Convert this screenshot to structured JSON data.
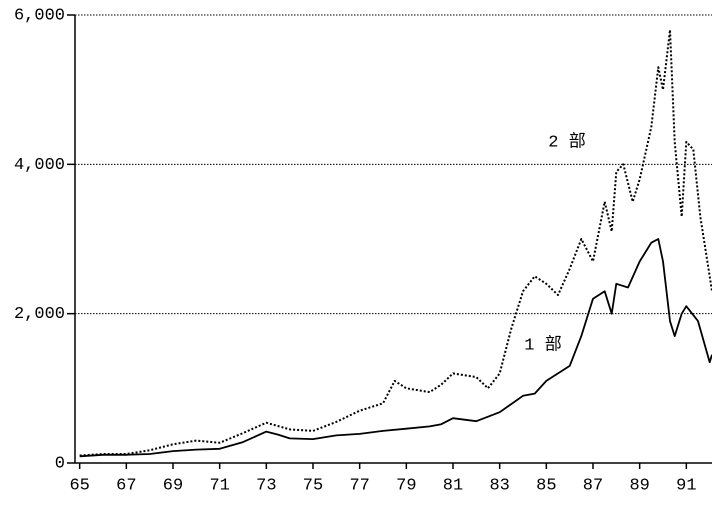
{
  "chart_data": {
    "type": "line",
    "annotations": [
      "2 部",
      "1 部"
    ],
    "xlim": [
      64.8,
      92.1
    ],
    "xticks": [
      65,
      67,
      69,
      71,
      73,
      75,
      77,
      79,
      81,
      83,
      85,
      87,
      89,
      91
    ],
    "ylim": [
      0,
      6000
    ],
    "yticks": [
      0,
      {
        "value": 2000,
        "label": "2,000"
      },
      {
        "value": 4000,
        "label": "4,000"
      },
      {
        "value": 6000,
        "label": "6,000"
      }
    ],
    "grid": true,
    "series": [
      {
        "color": "#000000",
        "style": "solid",
        "x": [
          65,
          66,
          67,
          68,
          69,
          70,
          71,
          72,
          73,
          73.5,
          74,
          75,
          76,
          77,
          78,
          79,
          80,
          80.5,
          81,
          82,
          83,
          84,
          84.5,
          85,
          86,
          86.5,
          87,
          87.5,
          87.8,
          88,
          88.5,
          89,
          89.5,
          89.8,
          90,
          90.3,
          90.5,
          90.8,
          91,
          91.5,
          92,
          92.1
        ],
        "values": [
          90,
          110,
          110,
          120,
          160,
          180,
          190,
          280,
          420,
          380,
          330,
          320,
          370,
          390,
          430,
          460,
          490,
          520,
          600,
          560,
          680,
          900,
          930,
          1100,
          1300,
          1700,
          2200,
          2300,
          2000,
          2400,
          2350,
          2700,
          2950,
          3000,
          2700,
          1900,
          1700,
          2000,
          2100,
          1900,
          1350,
          1450
        ]
      },
      {
        "color": "#000000",
        "style": "dotted",
        "x": [
          65,
          66,
          67,
          68,
          69,
          70,
          71,
          72,
          73,
          74,
          75,
          76,
          77,
          78,
          78.5,
          79,
          80,
          80.5,
          81,
          82,
          82.5,
          83,
          83.5,
          84,
          84.5,
          85,
          85.5,
          86,
          86.5,
          87,
          87.5,
          87.8,
          88,
          88.3,
          88.7,
          89,
          89.5,
          89.8,
          90,
          90.3,
          90.5,
          90.8,
          91,
          91.3,
          91.6,
          92,
          92.1
        ],
        "values": [
          100,
          120,
          120,
          170,
          250,
          300,
          270,
          400,
          540,
          450,
          430,
          550,
          700,
          800,
          1100,
          1000,
          950,
          1050,
          1200,
          1150,
          1000,
          1200,
          1800,
          2300,
          2500,
          2400,
          2250,
          2600,
          3000,
          2700,
          3500,
          3100,
          3900,
          4000,
          3500,
          3800,
          4500,
          5300,
          5000,
          5800,
          4300,
          3300,
          4300,
          4200,
          3300,
          2500,
          2300
        ]
      }
    ]
  }
}
